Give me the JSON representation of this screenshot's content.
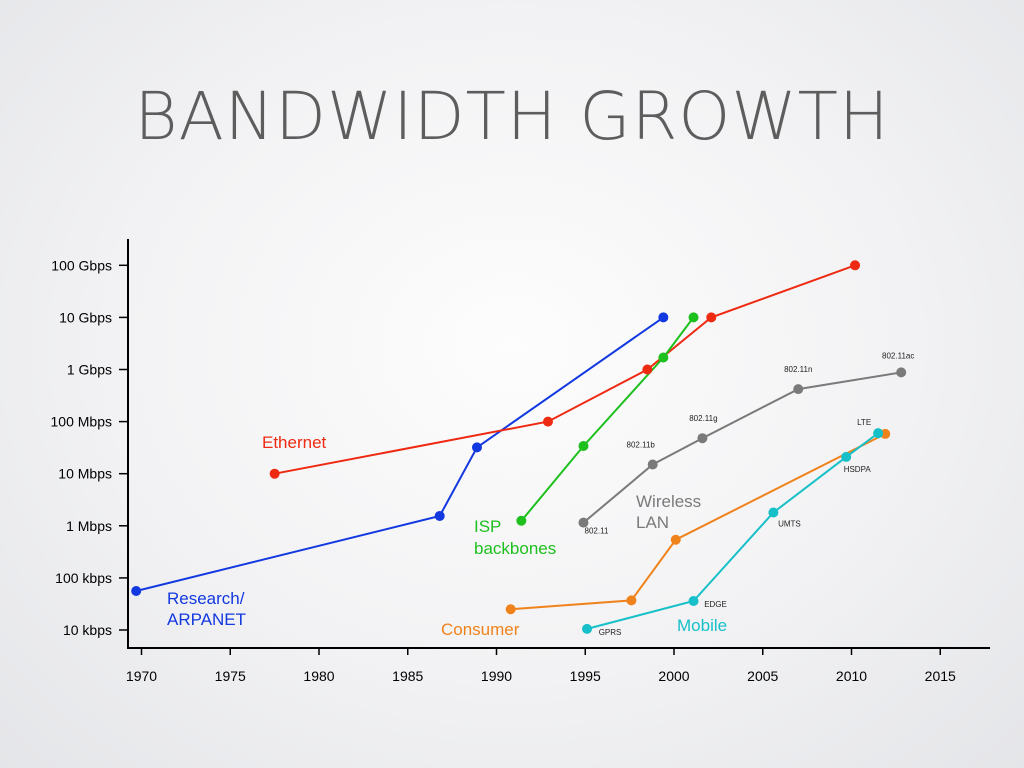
{
  "slide": {
    "title": "BANDWIDTH GROWTH"
  },
  "colors": {
    "research": "#1238e0",
    "ethernet": "#ee2a12",
    "isp": "#1dc01d",
    "wireless": "#7a7a7a",
    "consumer": "#f0821c",
    "mobile": "#17c0c8"
  },
  "chart_data": {
    "type": "line",
    "title": "BANDWIDTH GROWTH",
    "xlabel": "",
    "ylabel": "",
    "x_scale": "linear",
    "y_scale": "log",
    "xlim": [
      1969.5,
      2018.5
    ],
    "x_ticks": [
      1970,
      1975,
      1980,
      1985,
      1990,
      1995,
      2000,
      2005,
      2010,
      2015
    ],
    "y_ticks": [
      {
        "value": 10000,
        "label": "10 kbps"
      },
      {
        "value": 100000,
        "label": "100 kbps"
      },
      {
        "value": 1000000,
        "label": "1 Mbps"
      },
      {
        "value": 10000000,
        "label": "10 Mbps"
      },
      {
        "value": 100000000,
        "label": "100 Mbps"
      },
      {
        "value": 1000000000,
        "label": "1 Gbps"
      },
      {
        "value": 10000000000,
        "label": "10 Gbps"
      },
      {
        "value": 100000000000,
        "label": "100 Gbps"
      }
    ],
    "grid": false,
    "series": [
      {
        "key": "research",
        "name": "Research/\nARPANET",
        "name_lines": [
          "Research/",
          "ARPANET"
        ],
        "color": "research",
        "points": [
          {
            "x": 1969.7,
            "y": 56000
          },
          {
            "x": 1986.8,
            "y": 1544000
          },
          {
            "x": 1988.9,
            "y": 32000000
          },
          {
            "x": 1999.4,
            "y": 10000000000
          }
        ]
      },
      {
        "key": "ethernet",
        "name": "Ethernet",
        "name_lines": [
          "Ethernet"
        ],
        "color": "ethernet",
        "points": [
          {
            "x": 1977.5,
            "y": 10000000
          },
          {
            "x": 1992.9,
            "y": 100000000
          },
          {
            "x": 1998.5,
            "y": 1000000000
          },
          {
            "x": 2002.1,
            "y": 10000000000
          },
          {
            "x": 2010.2,
            "y": 100000000000
          }
        ]
      },
      {
        "key": "isp",
        "name": "ISP\nbackbones",
        "name_lines": [
          "ISP",
          "backbones"
        ],
        "color": "isp",
        "points": [
          {
            "x": 1991.4,
            "y": 1250000
          },
          {
            "x": 1994.9,
            "y": 34000000
          },
          {
            "x": 1999.4,
            "y": 1700000000
          },
          {
            "x": 2001.1,
            "y": 10000000000
          }
        ]
      },
      {
        "key": "wireless",
        "name": "Wireless\nLAN",
        "name_lines": [
          "Wireless",
          "LAN"
        ],
        "color": "wireless",
        "points": [
          {
            "x": 1994.9,
            "y": 1150000,
            "label": "802.11"
          },
          {
            "x": 1998.8,
            "y": 15000000,
            "label": "802.11b"
          },
          {
            "x": 2001.6,
            "y": 48000000,
            "label": "802.11g"
          },
          {
            "x": 2007.0,
            "y": 420000000,
            "label": "802.11n"
          },
          {
            "x": 2012.8,
            "y": 880000000,
            "label": "802.11ac"
          }
        ]
      },
      {
        "key": "consumer",
        "name": "Consumer",
        "name_lines": [
          "Consumer"
        ],
        "color": "consumer",
        "points": [
          {
            "x": 1990.8,
            "y": 25000
          },
          {
            "x": 1997.6,
            "y": 37000
          },
          {
            "x": 2000.1,
            "y": 540000
          },
          {
            "x": 2011.9,
            "y": 58000000
          }
        ]
      },
      {
        "key": "mobile",
        "name": "Mobile",
        "name_lines": [
          "Mobile"
        ],
        "color": "mobile",
        "points": [
          {
            "x": 1995.1,
            "y": 10500,
            "label": "GPRS"
          },
          {
            "x": 2001.1,
            "y": 36000,
            "label": "EDGE"
          },
          {
            "x": 2005.6,
            "y": 1800000,
            "label": "UMTS"
          },
          {
            "x": 2009.7,
            "y": 21000000,
            "label": "HSDPA"
          },
          {
            "x": 2011.5,
            "y": 60000000,
            "label": "LTE"
          }
        ]
      }
    ]
  }
}
